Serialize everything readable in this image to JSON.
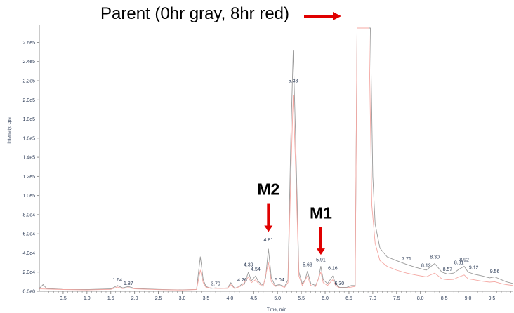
{
  "chart_data": {
    "type": "line",
    "title": "Parent (0hr gray, 8hr red)",
    "xlabel": "Time, min",
    "ylabel": "Intensity, cps",
    "xlim": [
      0.0,
      9.95
    ],
    "ylim": [
      0,
      275000
    ],
    "x_ticks": [
      {
        "value": 0.5,
        "label": "0.5"
      },
      {
        "value": 1.0,
        "label": "1.0"
      },
      {
        "value": 1.5,
        "label": "1.5"
      },
      {
        "value": 2.0,
        "label": "2.0"
      },
      {
        "value": 2.5,
        "label": "2.5"
      },
      {
        "value": 3.0,
        "label": "3.0"
      },
      {
        "value": 3.5,
        "label": "3.5"
      },
      {
        "value": 4.0,
        "label": "4.0"
      },
      {
        "value": 4.5,
        "label": "4.5"
      },
      {
        "value": 5.0,
        "label": "5.0"
      },
      {
        "value": 5.5,
        "label": "5.5"
      },
      {
        "value": 6.0,
        "label": "6.0"
      },
      {
        "value": 6.5,
        "label": "6.5"
      },
      {
        "value": 7.0,
        "label": "7.0"
      },
      {
        "value": 7.5,
        "label": "7.5"
      },
      {
        "value": 8.0,
        "label": "8.0"
      },
      {
        "value": 8.5,
        "label": "8.5"
      },
      {
        "value": 9.0,
        "label": "9.0"
      },
      {
        "value": 9.5,
        "label": "9.5"
      }
    ],
    "y_ticks": [
      {
        "value": 0,
        "label": "0.0e0"
      },
      {
        "value": 20000,
        "label": "2.0e4"
      },
      {
        "value": 40000,
        "label": "4.0e4"
      },
      {
        "value": 60000,
        "label": "6.0e4"
      },
      {
        "value": 80000,
        "label": "8.0e4"
      },
      {
        "value": 100000,
        "label": "1.0e5"
      },
      {
        "value": 120000,
        "label": "1.2e5"
      },
      {
        "value": 140000,
        "label": "1.4e5"
      },
      {
        "value": 160000,
        "label": "1.6e5"
      },
      {
        "value": 180000,
        "label": "1.8e5"
      },
      {
        "value": 200000,
        "label": "2.0e5"
      },
      {
        "value": 220000,
        "label": "2.2e5"
      },
      {
        "value": 240000,
        "label": "2.4e5"
      },
      {
        "value": 260000,
        "label": "2.6e5"
      }
    ],
    "peak_labels": [
      {
        "label": "1.64",
        "x": 1.64,
        "y": 8000
      },
      {
        "label": "1.87",
        "x": 1.87,
        "y": 4500
      },
      {
        "label": "3.70",
        "x": 3.7,
        "y": 4000
      },
      {
        "label": "4.26",
        "x": 4.26,
        "y": 8000
      },
      {
        "label": "4.39",
        "x": 4.39,
        "y": 24000
      },
      {
        "label": "4.54",
        "x": 4.54,
        "y": 19000
      },
      {
        "label": "4.81",
        "x": 4.81,
        "y": 50000
      },
      {
        "label": "5.04",
        "x": 5.04,
        "y": 8000
      },
      {
        "label": "5.33",
        "x": 5.33,
        "y": 216000
      },
      {
        "label": "5.63",
        "x": 5.63,
        "y": 24000
      },
      {
        "label": "5.91",
        "x": 5.91,
        "y": 29000
      },
      {
        "label": "6.16",
        "x": 6.16,
        "y": 20000
      },
      {
        "label": "6.30",
        "x": 6.3,
        "y": 4500
      },
      {
        "label": "7.71",
        "x": 7.71,
        "y": 30000
      },
      {
        "label": "8.12",
        "x": 8.12,
        "y": 23000
      },
      {
        "label": "8.30",
        "x": 8.3,
        "y": 32000
      },
      {
        "label": "8.57",
        "x": 8.57,
        "y": 19000
      },
      {
        "label": "8.81",
        "x": 8.81,
        "y": 26000
      },
      {
        "label": "8.92",
        "x": 8.92,
        "y": 29000
      },
      {
        "label": "9.12",
        "x": 9.12,
        "y": 21000
      },
      {
        "label": "9.56",
        "x": 9.56,
        "y": 17000
      }
    ],
    "series": [
      {
        "color": "#9a9a9a",
        "points": [
          [
            0.0,
            3000
          ],
          [
            0.08,
            7000
          ],
          [
            0.15,
            3000
          ],
          [
            0.5,
            2000
          ],
          [
            1.0,
            1800
          ],
          [
            1.5,
            2500
          ],
          [
            1.64,
            6000
          ],
          [
            1.75,
            3500
          ],
          [
            1.87,
            5000
          ],
          [
            2.0,
            3000
          ],
          [
            2.5,
            2000
          ],
          [
            3.0,
            1500
          ],
          [
            3.3,
            2000
          ],
          [
            3.38,
            36000
          ],
          [
            3.44,
            12000
          ],
          [
            3.5,
            5000
          ],
          [
            3.6,
            3000
          ],
          [
            3.7,
            3500
          ],
          [
            3.8,
            3000
          ],
          [
            3.95,
            3500
          ],
          [
            4.02,
            9000
          ],
          [
            4.1,
            3000
          ],
          [
            4.2,
            5000
          ],
          [
            4.26,
            8000
          ],
          [
            4.3,
            7000
          ],
          [
            4.39,
            20000
          ],
          [
            4.45,
            11000
          ],
          [
            4.54,
            16000
          ],
          [
            4.6,
            10000
          ],
          [
            4.7,
            6000
          ],
          [
            4.75,
            14000
          ],
          [
            4.81,
            44000
          ],
          [
            4.87,
            14000
          ],
          [
            4.95,
            6000
          ],
          [
            5.04,
            7000
          ],
          [
            5.15,
            5000
          ],
          [
            5.22,
            12000
          ],
          [
            5.28,
            160000
          ],
          [
            5.33,
            252000
          ],
          [
            5.38,
            160000
          ],
          [
            5.45,
            20000
          ],
          [
            5.52,
            8000
          ],
          [
            5.58,
            12000
          ],
          [
            5.63,
            21000
          ],
          [
            5.7,
            8000
          ],
          [
            5.8,
            6000
          ],
          [
            5.86,
            13000
          ],
          [
            5.91,
            26000
          ],
          [
            5.96,
            12000
          ],
          [
            6.05,
            8000
          ],
          [
            6.16,
            16000
          ],
          [
            6.22,
            8000
          ],
          [
            6.3,
            4000
          ],
          [
            6.45,
            4000
          ],
          [
            6.55,
            6000
          ],
          [
            6.63,
            6000
          ],
          [
            6.67,
            275000
          ],
          [
            6.95,
            275000
          ],
          [
            7.0,
            120000
          ],
          [
            7.05,
            70000
          ],
          [
            7.15,
            45000
          ],
          [
            7.3,
            36000
          ],
          [
            7.5,
            32000
          ],
          [
            7.71,
            28000
          ],
          [
            7.9,
            25000
          ],
          [
            8.12,
            22000
          ],
          [
            8.3,
            29000
          ],
          [
            8.45,
            20000
          ],
          [
            8.57,
            18000
          ],
          [
            8.7,
            19000
          ],
          [
            8.81,
            23000
          ],
          [
            8.92,
            26000
          ],
          [
            9.0,
            20000
          ],
          [
            9.12,
            18000
          ],
          [
            9.3,
            16000
          ],
          [
            9.45,
            14000
          ],
          [
            9.56,
            15000
          ],
          [
            9.7,
            12000
          ],
          [
            9.8,
            10000
          ],
          [
            9.95,
            8000
          ]
        ]
      },
      {
        "color": "#f4a8a3",
        "points": [
          [
            0.0,
            2500
          ],
          [
            0.5,
            1800
          ],
          [
            1.0,
            1500
          ],
          [
            1.5,
            2000
          ],
          [
            1.64,
            4500
          ],
          [
            1.75,
            2800
          ],
          [
            1.87,
            3800
          ],
          [
            2.0,
            2500
          ],
          [
            2.5,
            1700
          ],
          [
            3.0,
            1300
          ],
          [
            3.3,
            1800
          ],
          [
            3.38,
            22000
          ],
          [
            3.44,
            9000
          ],
          [
            3.5,
            4000
          ],
          [
            3.7,
            3000
          ],
          [
            3.95,
            3000
          ],
          [
            4.02,
            7000
          ],
          [
            4.1,
            2800
          ],
          [
            4.26,
            6000
          ],
          [
            4.39,
            15000
          ],
          [
            4.45,
            9000
          ],
          [
            4.54,
            12000
          ],
          [
            4.6,
            8000
          ],
          [
            4.7,
            5000
          ],
          [
            4.81,
            30000
          ],
          [
            4.87,
            10000
          ],
          [
            4.95,
            5000
          ],
          [
            5.04,
            6000
          ],
          [
            5.15,
            4000
          ],
          [
            5.22,
            9000
          ],
          [
            5.28,
            120000
          ],
          [
            5.33,
            205000
          ],
          [
            5.38,
            130000
          ],
          [
            5.45,
            16000
          ],
          [
            5.52,
            6000
          ],
          [
            5.63,
            16000
          ],
          [
            5.7,
            6000
          ],
          [
            5.8,
            5000
          ],
          [
            5.91,
            20000
          ],
          [
            5.96,
            9000
          ],
          [
            6.05,
            6000
          ],
          [
            6.16,
            12000
          ],
          [
            6.22,
            6000
          ],
          [
            6.3,
            3500
          ],
          [
            6.45,
            3500
          ],
          [
            6.63,
            5000
          ],
          [
            6.67,
            275000
          ],
          [
            6.92,
            275000
          ],
          [
            6.98,
            90000
          ],
          [
            7.05,
            50000
          ],
          [
            7.15,
            32000
          ],
          [
            7.3,
            26000
          ],
          [
            7.5,
            22000
          ],
          [
            7.71,
            19000
          ],
          [
            7.9,
            17000
          ],
          [
            8.12,
            15000
          ],
          [
            8.3,
            19000
          ],
          [
            8.45,
            13000
          ],
          [
            8.57,
            12000
          ],
          [
            8.7,
            12500
          ],
          [
            8.81,
            15000
          ],
          [
            8.92,
            17000
          ],
          [
            9.0,
            13000
          ],
          [
            9.12,
            12000
          ],
          [
            9.3,
            10500
          ],
          [
            9.45,
            9500
          ],
          [
            9.56,
            10000
          ],
          [
            9.7,
            8000
          ],
          [
            9.8,
            7000
          ],
          [
            9.95,
            6000
          ]
        ]
      }
    ],
    "annotations": [
      {
        "label": "M2",
        "arrow_x": 4.81,
        "arrow_from": 92000,
        "arrow_to": 62000
      },
      {
        "label": "M1",
        "arrow_x": 5.91,
        "arrow_from": 67000,
        "arrow_to": 38000
      }
    ]
  },
  "colors": {
    "arrow": "#e00000",
    "axis": "#7a7a7a",
    "text": "#2b3a55"
  }
}
